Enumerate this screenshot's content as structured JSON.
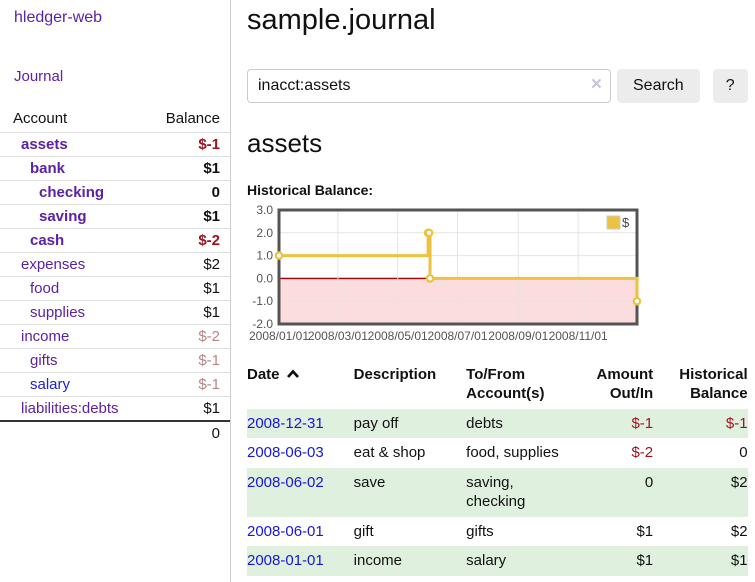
{
  "sidebar": {
    "brand": "hledger-web",
    "nav": {
      "journal_label": "Journal"
    },
    "accounts_table": {
      "headers": {
        "account": "Account",
        "balance": "Balance"
      },
      "rows": [
        {
          "account": "assets",
          "balance": "$-1",
          "indent": 1,
          "bold": true,
          "balance_color": "negative-strong"
        },
        {
          "account": "bank",
          "balance": "$1",
          "indent": 2,
          "bold": true
        },
        {
          "account": "checking",
          "balance": "0",
          "indent": 3,
          "bold": true
        },
        {
          "account": "saving",
          "balance": "$1",
          "indent": 3,
          "bold": true
        },
        {
          "account": "cash",
          "balance": "$-2",
          "indent": 2,
          "bold": true,
          "balance_color": "negative-strong"
        },
        {
          "account": "expenses",
          "balance": "$2",
          "indent": 1
        },
        {
          "account": "food",
          "balance": "$1",
          "indent": 2
        },
        {
          "account": "supplies",
          "balance": "$1",
          "indent": 2
        },
        {
          "account": "income",
          "balance": "$-2",
          "indent": 1,
          "balance_color": "negative-soft"
        },
        {
          "account": "gifts",
          "balance": "$-1",
          "indent": 2,
          "balance_color": "negative-soft"
        },
        {
          "account": "salary",
          "balance": "$-1",
          "indent": 2,
          "balance_color": "negative-soft",
          "link_color": "blue"
        },
        {
          "account": "liabilities:debts",
          "balance": "$1",
          "indent": 1
        }
      ],
      "total": "0"
    }
  },
  "header": {
    "title": "sample.journal"
  },
  "search": {
    "value": "inacct:assets",
    "clear_icon": "×",
    "button_label": "Search",
    "help_label": "?"
  },
  "account_page": {
    "heading": "assets",
    "chart_label": "Historical Balance:"
  },
  "chart_data": {
    "type": "line",
    "step": true,
    "title": "Historical Balance:",
    "series": [
      {
        "name": "$",
        "points": [
          {
            "x": "2008/01/01",
            "y": 1
          },
          {
            "x": "2008/06/01",
            "y": 2
          },
          {
            "x": "2008/06/02",
            "y": 2
          },
          {
            "x": "2008/06/03",
            "y": 0
          },
          {
            "x": "2008/12/31",
            "y": -1
          }
        ]
      }
    ],
    "xlim": [
      "2008/01/01",
      "2008/12/31"
    ],
    "ylim": [
      -2,
      3
    ],
    "yticks": [
      3.0,
      2.0,
      1.0,
      0.0,
      -1.0,
      -2.0
    ],
    "xticks": [
      "2008/01/01",
      "2008/03/01",
      "2008/05/01",
      "2008/07/01",
      "2008/09/01",
      "2008/11/01"
    ],
    "legend": {
      "label": "$",
      "position": "top-right"
    },
    "grid": true,
    "colors": {
      "line": "#edc240",
      "marker_fill": "#ffffff",
      "negative_region": "#fbdddd",
      "zero_line": "#a40000",
      "frame": "#545454",
      "gridline": "#e4e4e4",
      "tick_text": "#545454"
    }
  },
  "register": {
    "headers": {
      "date": "Date",
      "description": "Description",
      "accounts": "To/From Account(s)",
      "amount": "Amount Out/In",
      "balance": "Historical Balance"
    },
    "rows": [
      {
        "date": "2008-12-31",
        "description": "pay off",
        "accounts": "debts",
        "amount": "$-1",
        "balance": "$-1",
        "amount_negative": true,
        "balance_negative": true,
        "shaded": true
      },
      {
        "date": "2008-06-03",
        "description": "eat & shop",
        "accounts": "food, supplies",
        "amount": "$-2",
        "balance": "0",
        "amount_negative": true
      },
      {
        "date": "2008-06-02",
        "description": "save",
        "accounts": "saving, checking",
        "amount": "0",
        "balance": "$2",
        "shaded": true
      },
      {
        "date": "2008-06-01",
        "description": "gift",
        "accounts": "gifts",
        "amount": "$1",
        "balance": "$2"
      },
      {
        "date": "2008-01-01",
        "description": "income",
        "accounts": "salary",
        "amount": "$1",
        "balance": "$1",
        "shaded": true
      }
    ]
  }
}
